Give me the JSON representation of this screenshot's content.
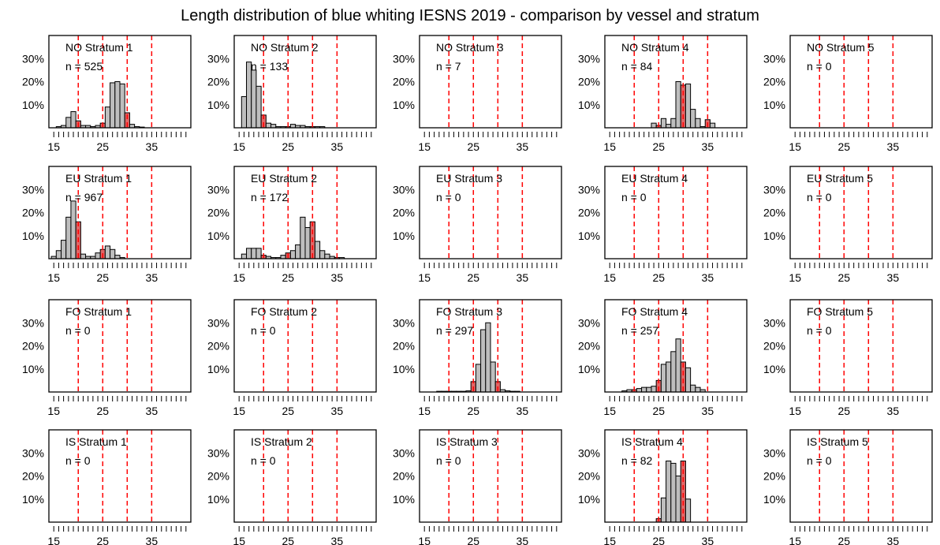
{
  "title": "Length distribution of blue whiting IESNS 2019 - comparison by vessel and stratum",
  "n_prefix": "n =",
  "x_ticks": [
    15,
    25,
    35
  ],
  "y_ticks": [
    "10%",
    "20%",
    "30%"
  ],
  "colors": {
    "bar_fill": "#bebebe",
    "bar_highlight": "#e06666",
    "ref_line": "#ff0000",
    "frame": "#000000"
  },
  "chart_data": {
    "type": "bar",
    "xlim": [
      14,
      43
    ],
    "ylim": [
      0,
      0.4
    ],
    "reference_lines": [
      20,
      25,
      30,
      35
    ],
    "highlight_bins": [
      20,
      25,
      30,
      35
    ],
    "panels": [
      {
        "label": "NO Stratum 1",
        "n": "525",
        "bins": [
          16,
          17,
          18,
          19,
          20,
          21,
          22,
          23,
          24,
          25,
          26,
          27,
          28,
          29,
          30,
          31,
          32,
          33
        ],
        "values": [
          0.005,
          0.01,
          0.045,
          0.07,
          0.03,
          0.01,
          0.01,
          0.005,
          0.01,
          0.02,
          0.09,
          0.195,
          0.2,
          0.19,
          0.065,
          0.015,
          0.005,
          0.003
        ]
      },
      {
        "label": "NO Stratum 2",
        "n": "133",
        "bins": [
          16,
          17,
          18,
          19,
          20,
          21,
          22,
          23,
          24,
          25,
          26,
          27,
          28,
          29,
          30,
          31,
          32
        ],
        "values": [
          0.135,
          0.285,
          0.25,
          0.18,
          0.055,
          0.02,
          0.015,
          0.005,
          0.005,
          0.005,
          0.015,
          0.01,
          0.01,
          0.005,
          0.005,
          0.005,
          0.005
        ]
      },
      {
        "label": "NO Stratum 3",
        "n": "7",
        "bins": [],
        "values": []
      },
      {
        "label": "NO Stratum 4",
        "n": "84",
        "bins": [
          24,
          25,
          26,
          27,
          28,
          29,
          30,
          31,
          32,
          33,
          34,
          35,
          36
        ],
        "values": [
          0.02,
          0.01,
          0.04,
          0.015,
          0.04,
          0.2,
          0.185,
          0.19,
          0.08,
          0.04,
          0.005,
          0.035,
          0.02
        ]
      },
      {
        "label": "NO Stratum 5",
        "n": "0",
        "bins": [],
        "values": []
      },
      {
        "label": "EU Stratum 1",
        "n": "967",
        "bins": [
          15,
          16,
          17,
          18,
          19,
          20,
          21,
          22,
          23,
          24,
          25,
          26,
          27,
          28,
          29
        ],
        "values": [
          0.01,
          0.035,
          0.08,
          0.18,
          0.25,
          0.16,
          0.02,
          0.01,
          0.01,
          0.025,
          0.04,
          0.055,
          0.04,
          0.015,
          0.005
        ]
      },
      {
        "label": "EU Stratum 2",
        "n": "172",
        "bins": [
          16,
          17,
          18,
          19,
          20,
          21,
          22,
          23,
          24,
          25,
          26,
          27,
          28,
          29,
          30,
          31,
          32,
          33,
          34,
          35,
          36
        ],
        "values": [
          0.02,
          0.045,
          0.045,
          0.045,
          0.015,
          0.01,
          0.005,
          0.005,
          0.015,
          0.025,
          0.035,
          0.06,
          0.18,
          0.135,
          0.16,
          0.075,
          0.035,
          0.02,
          0.01,
          0.005,
          0.005
        ]
      },
      {
        "label": "EU Stratum 3",
        "n": "0",
        "bins": [],
        "values": []
      },
      {
        "label": "EU Stratum 4",
        "n": "0",
        "bins": [],
        "values": []
      },
      {
        "label": "EU Stratum 5",
        "n": "0",
        "bins": [],
        "values": []
      },
      {
        "label": "FO Stratum 1",
        "n": "0",
        "bins": [],
        "values": []
      },
      {
        "label": "FO Stratum 2",
        "n": "0",
        "bins": [],
        "values": []
      },
      {
        "label": "FO Stratum 3",
        "n": "297",
        "bins": [
          18,
          19,
          20,
          21,
          22,
          23,
          24,
          25,
          26,
          27,
          28,
          29,
          30,
          31,
          32,
          33,
          34
        ],
        "values": [
          0.003,
          0.003,
          0.003,
          0.003,
          0.003,
          0.003,
          0.005,
          0.045,
          0.12,
          0.27,
          0.3,
          0.13,
          0.045,
          0.01,
          0.005,
          0.003,
          0.003
        ]
      },
      {
        "label": "FO Stratum 4",
        "n": "257",
        "bins": [
          18,
          19,
          20,
          21,
          22,
          23,
          24,
          25,
          26,
          27,
          28,
          29,
          30,
          31,
          32,
          33,
          34
        ],
        "values": [
          0.005,
          0.01,
          0.01,
          0.015,
          0.02,
          0.02,
          0.025,
          0.05,
          0.12,
          0.13,
          0.175,
          0.23,
          0.13,
          0.105,
          0.03,
          0.02,
          0.01
        ]
      },
      {
        "label": "FO Stratum 5",
        "n": "0",
        "bins": [],
        "values": []
      },
      {
        "label": "IS Stratum 1",
        "n": "0",
        "bins": [],
        "values": []
      },
      {
        "label": "IS Stratum 2",
        "n": "0",
        "bins": [],
        "values": []
      },
      {
        "label": "IS Stratum 3",
        "n": "0",
        "bins": [],
        "values": []
      },
      {
        "label": "IS Stratum 4",
        "n": "82",
        "bins": [
          25,
          26,
          27,
          28,
          29,
          30,
          31
        ],
        "values": [
          0.015,
          0.105,
          0.265,
          0.255,
          0.2,
          0.265,
          0.1
        ]
      },
      {
        "label": "IS Stratum 5",
        "n": "0",
        "bins": [],
        "values": []
      }
    ]
  }
}
